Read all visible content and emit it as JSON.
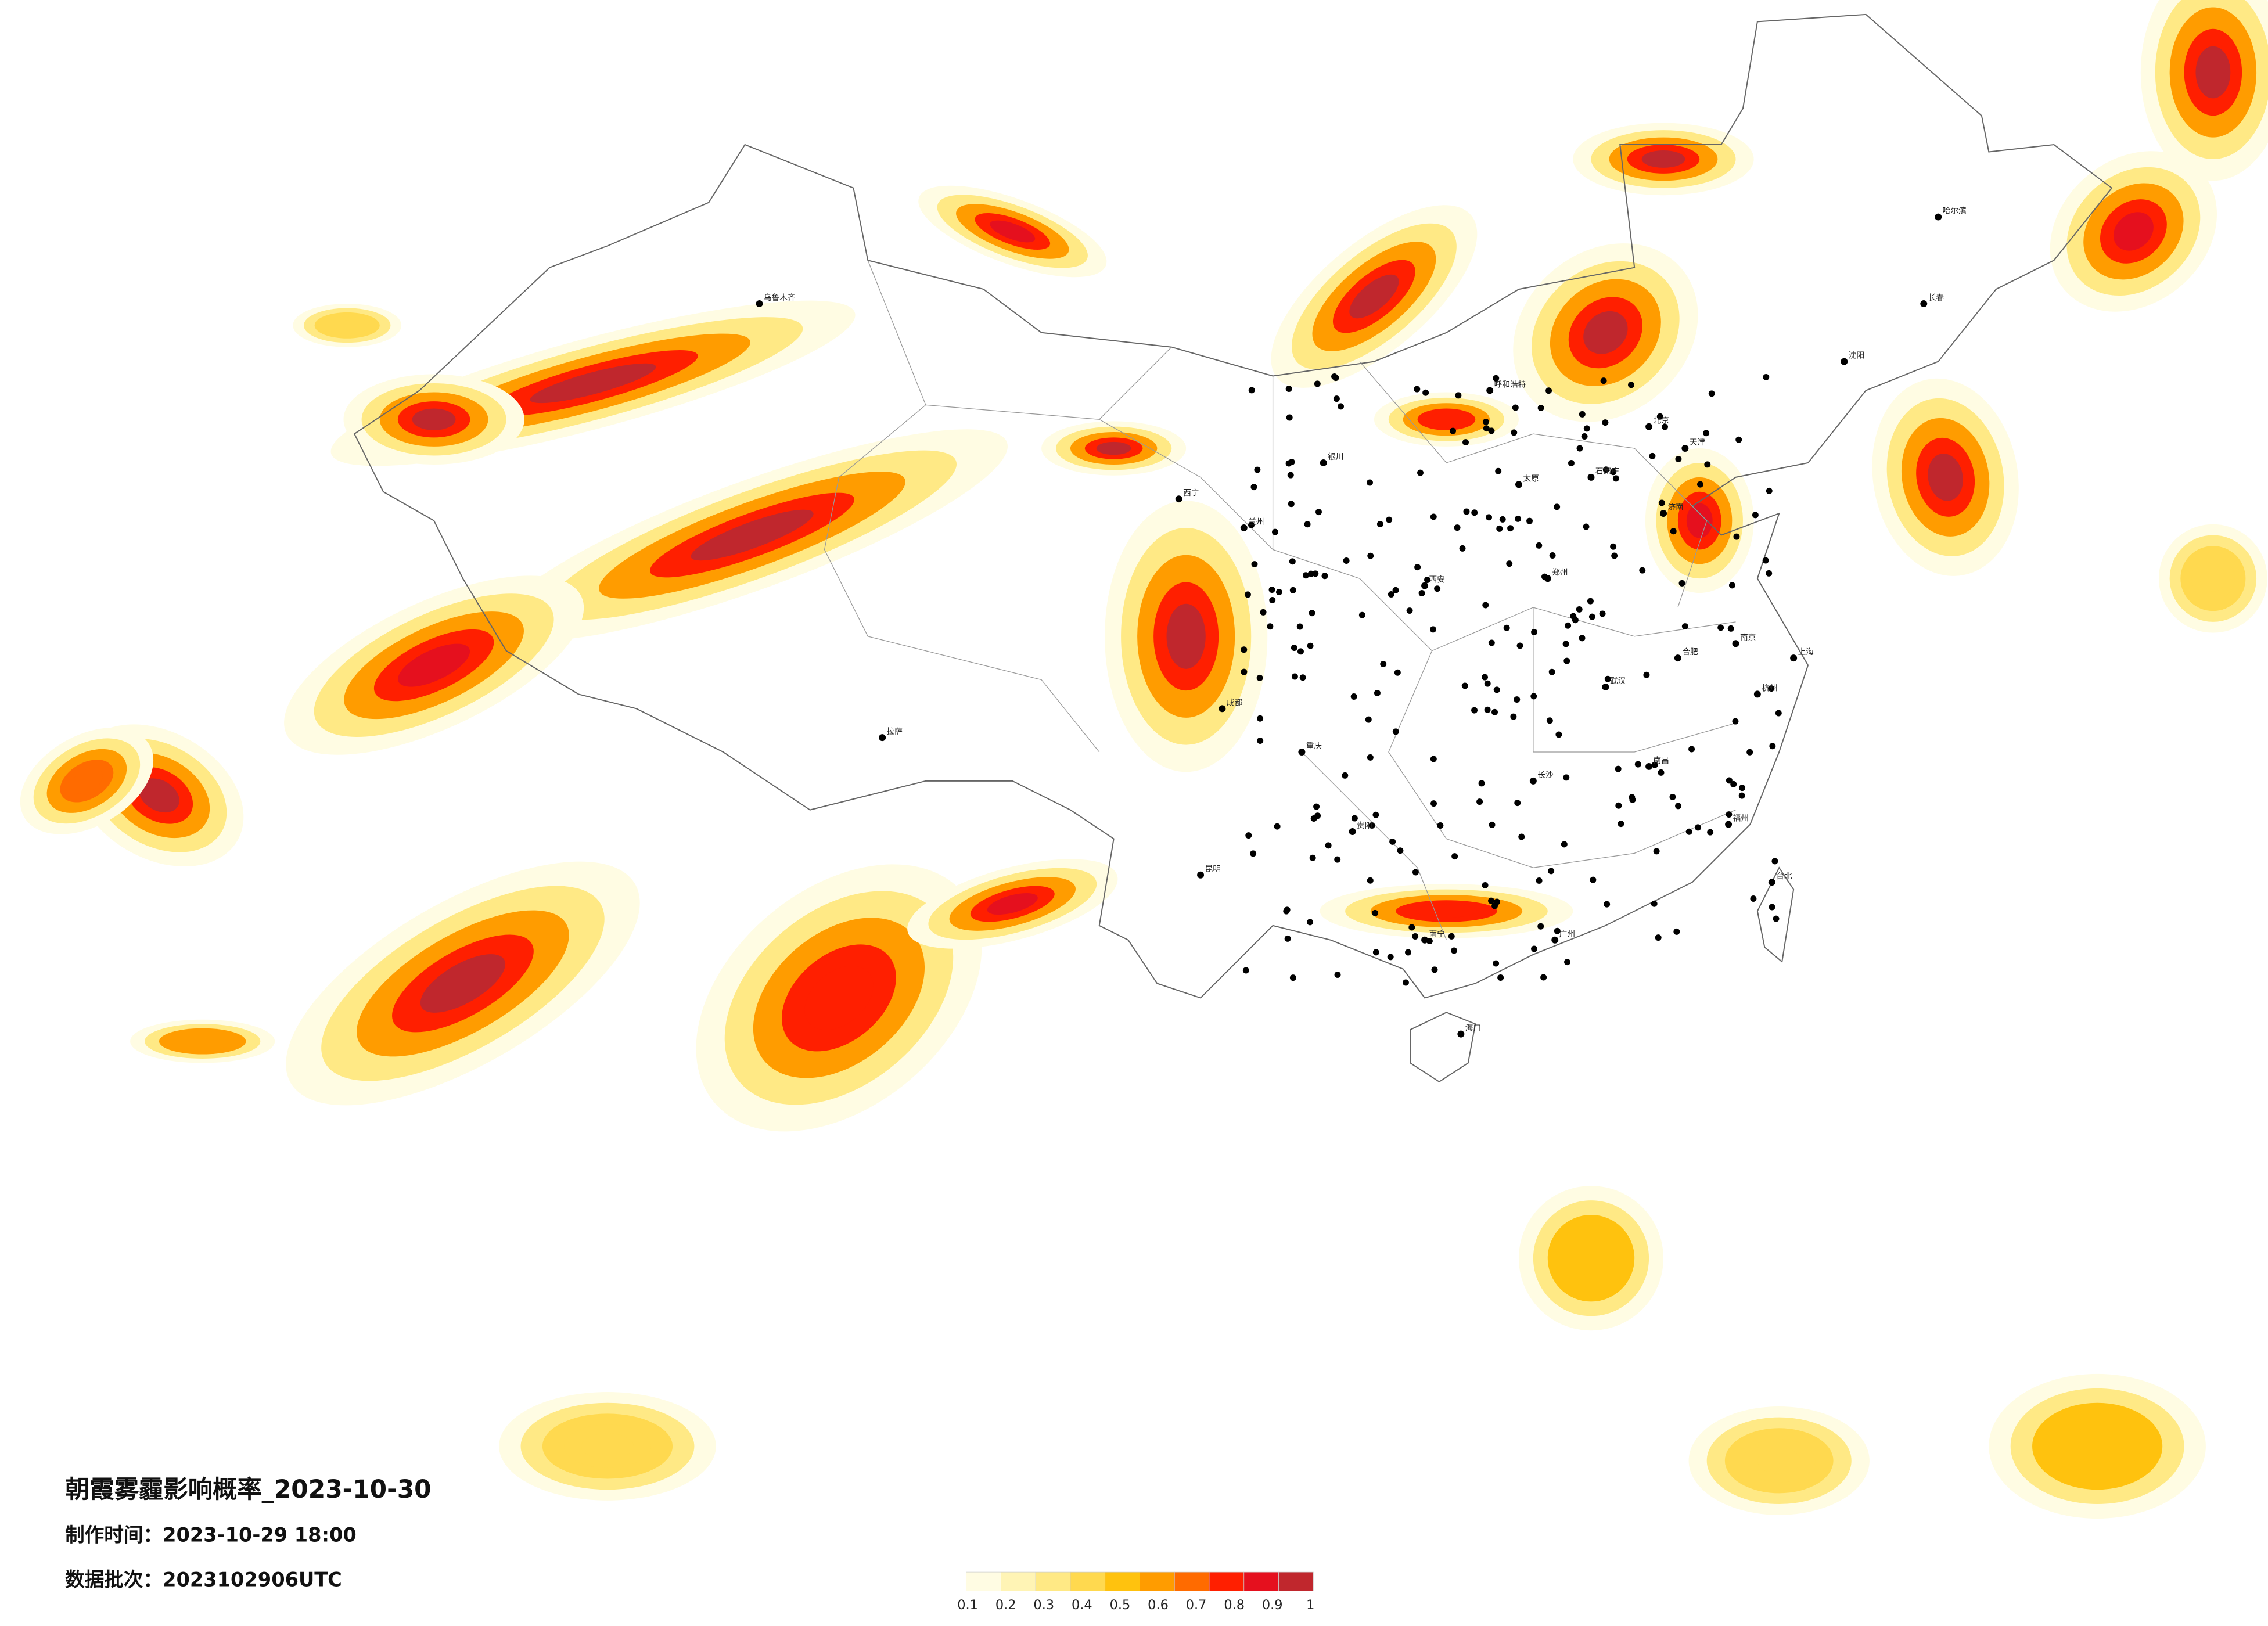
{
  "header": {
    "title": "朝霞雾霾影响概率_2023-10-30",
    "made_time": "制作时间：2023-10-29 18:00",
    "batch": "数据批次：2023102906UTC"
  },
  "legend": {
    "colors": [
      "#fffce3",
      "#fff4b5",
      "#ffe985",
      "#ffd94f",
      "#ffc20e",
      "#ff9c00",
      "#ff6b00",
      "#ff1f00",
      "#e5101e",
      "#c0272d"
    ],
    "ticks": [
      0.1,
      0.2,
      0.3,
      0.4,
      0.5,
      0.6,
      0.7,
      0.8,
      0.9,
      1
    ]
  },
  "cities": [
    "北京",
    "天津",
    "石家庄",
    "太原",
    "呼和浩特",
    "郑州",
    "济南",
    "西安",
    "兰州",
    "西宁",
    "银川",
    "乌鲁木齐",
    "拉萨",
    "成都",
    "重庆",
    "贵阳",
    "昆明",
    "南宁",
    "广州",
    "长沙",
    "武汉",
    "南昌",
    "合肥",
    "南京",
    "上海",
    "杭州",
    "福州",
    "沈阳",
    "长春",
    "哈尔滨",
    "台北",
    "海口"
  ]
}
